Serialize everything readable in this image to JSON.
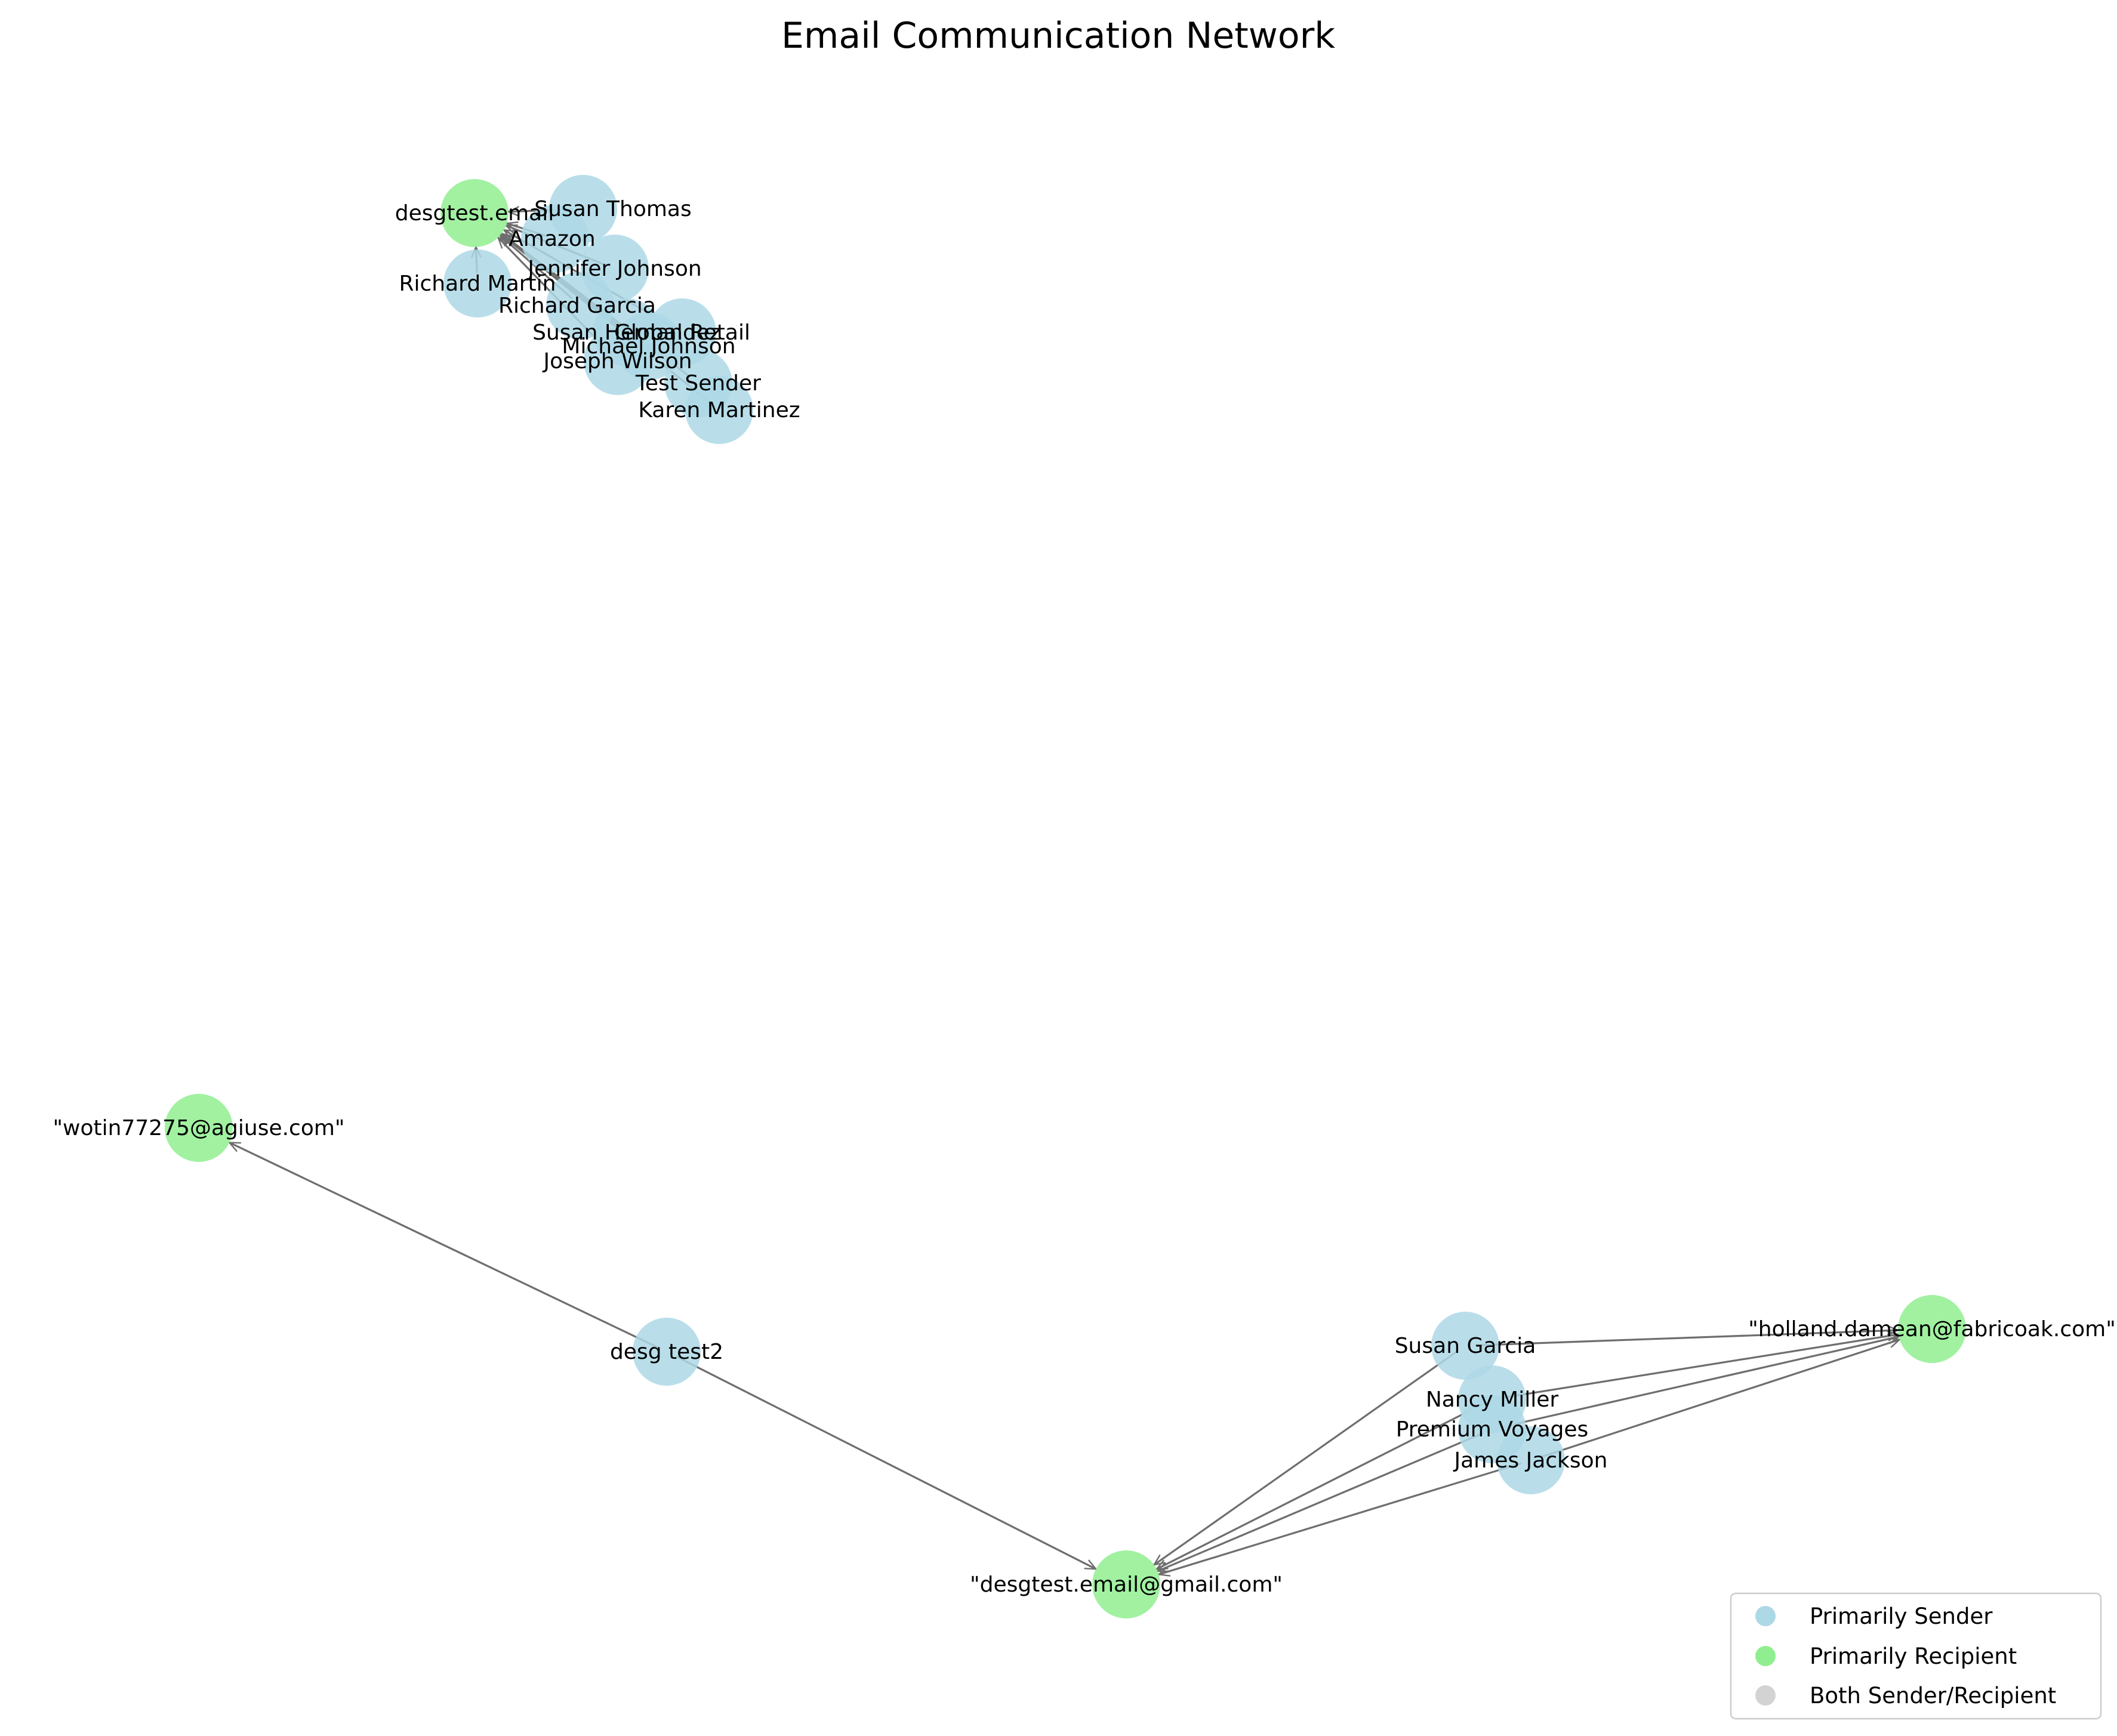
{
  "title": "Email Communication Network",
  "colors": {
    "sender": "#add8e6",
    "recipient": "#90ee90",
    "both": "#d3d3d3",
    "edge": "#6e6e6e"
  },
  "legend": [
    {
      "label": "Primarily Sender",
      "role": "sender"
    },
    {
      "label": "Primarily Recipient",
      "role": "recipient"
    },
    {
      "label": "Both Sender/Recipient",
      "role": "both"
    }
  ],
  "nodes": [
    {
      "id": "desgtest_email",
      "label": "desgtest.email",
      "role": "recipient"
    },
    {
      "id": "susan_thomas",
      "label": "Susan Thomas",
      "role": "sender"
    },
    {
      "id": "amazon",
      "label": "Amazon",
      "role": "sender"
    },
    {
      "id": "jennifer_johnson",
      "label": "Jennifer Johnson",
      "role": "sender"
    },
    {
      "id": "richard_martin",
      "label": "Richard Martin",
      "role": "sender"
    },
    {
      "id": "richard_garcia",
      "label": "Richard Garcia",
      "role": "sender"
    },
    {
      "id": "susan_hernandez",
      "label": "Susan Hernandez",
      "role": "sender"
    },
    {
      "id": "global_retail",
      "label": "Global Retail",
      "role": "sender"
    },
    {
      "id": "michael_johnson",
      "label": "Michael Johnson",
      "role": "sender"
    },
    {
      "id": "joseph_wilson",
      "label": "Joseph Wilson",
      "role": "sender"
    },
    {
      "id": "test_sender",
      "label": "Test Sender",
      "role": "sender"
    },
    {
      "id": "karen_martinez",
      "label": "Karen Martinez",
      "role": "sender"
    },
    {
      "id": "wotin",
      "label": "\"wotin77275@agiuse.com\"",
      "role": "recipient"
    },
    {
      "id": "desg_test2",
      "label": "desg test2",
      "role": "sender"
    },
    {
      "id": "desgtest_gmail",
      "label": "\"desgtest.email@gmail.com\"",
      "role": "recipient"
    },
    {
      "id": "susan_garcia",
      "label": "Susan Garcia",
      "role": "sender"
    },
    {
      "id": "holland",
      "label": "\"holland.damean@fabricoak.com\"",
      "role": "recipient"
    },
    {
      "id": "nancy_miller",
      "label": "Nancy Miller",
      "role": "sender"
    },
    {
      "id": "premium_voyages",
      "label": "Premium Voyages",
      "role": "sender"
    },
    {
      "id": "james_jackson",
      "label": "James Jackson",
      "role": "sender"
    }
  ],
  "edges": [
    {
      "from": "susan_thomas",
      "to": "desgtest_email"
    },
    {
      "from": "amazon",
      "to": "desgtest_email"
    },
    {
      "from": "jennifer_johnson",
      "to": "desgtest_email"
    },
    {
      "from": "richard_martin",
      "to": "desgtest_email"
    },
    {
      "from": "richard_garcia",
      "to": "desgtest_email"
    },
    {
      "from": "susan_hernandez",
      "to": "desgtest_email"
    },
    {
      "from": "global_retail",
      "to": "desgtest_email"
    },
    {
      "from": "michael_johnson",
      "to": "desgtest_email"
    },
    {
      "from": "joseph_wilson",
      "to": "desgtest_email"
    },
    {
      "from": "test_sender",
      "to": "desgtest_email"
    },
    {
      "from": "karen_martinez",
      "to": "desgtest_email"
    },
    {
      "from": "desg_test2",
      "to": "wotin"
    },
    {
      "from": "desg_test2",
      "to": "desgtest_gmail"
    },
    {
      "from": "susan_garcia",
      "to": "holland"
    },
    {
      "from": "susan_garcia",
      "to": "desgtest_gmail"
    },
    {
      "from": "nancy_miller",
      "to": "holland"
    },
    {
      "from": "nancy_miller",
      "to": "desgtest_gmail"
    },
    {
      "from": "premium_voyages",
      "to": "holland"
    },
    {
      "from": "premium_voyages",
      "to": "desgtest_gmail"
    },
    {
      "from": "james_jackson",
      "to": "holland"
    },
    {
      "from": "james_jackson",
      "to": "desgtest_gmail"
    }
  ]
}
